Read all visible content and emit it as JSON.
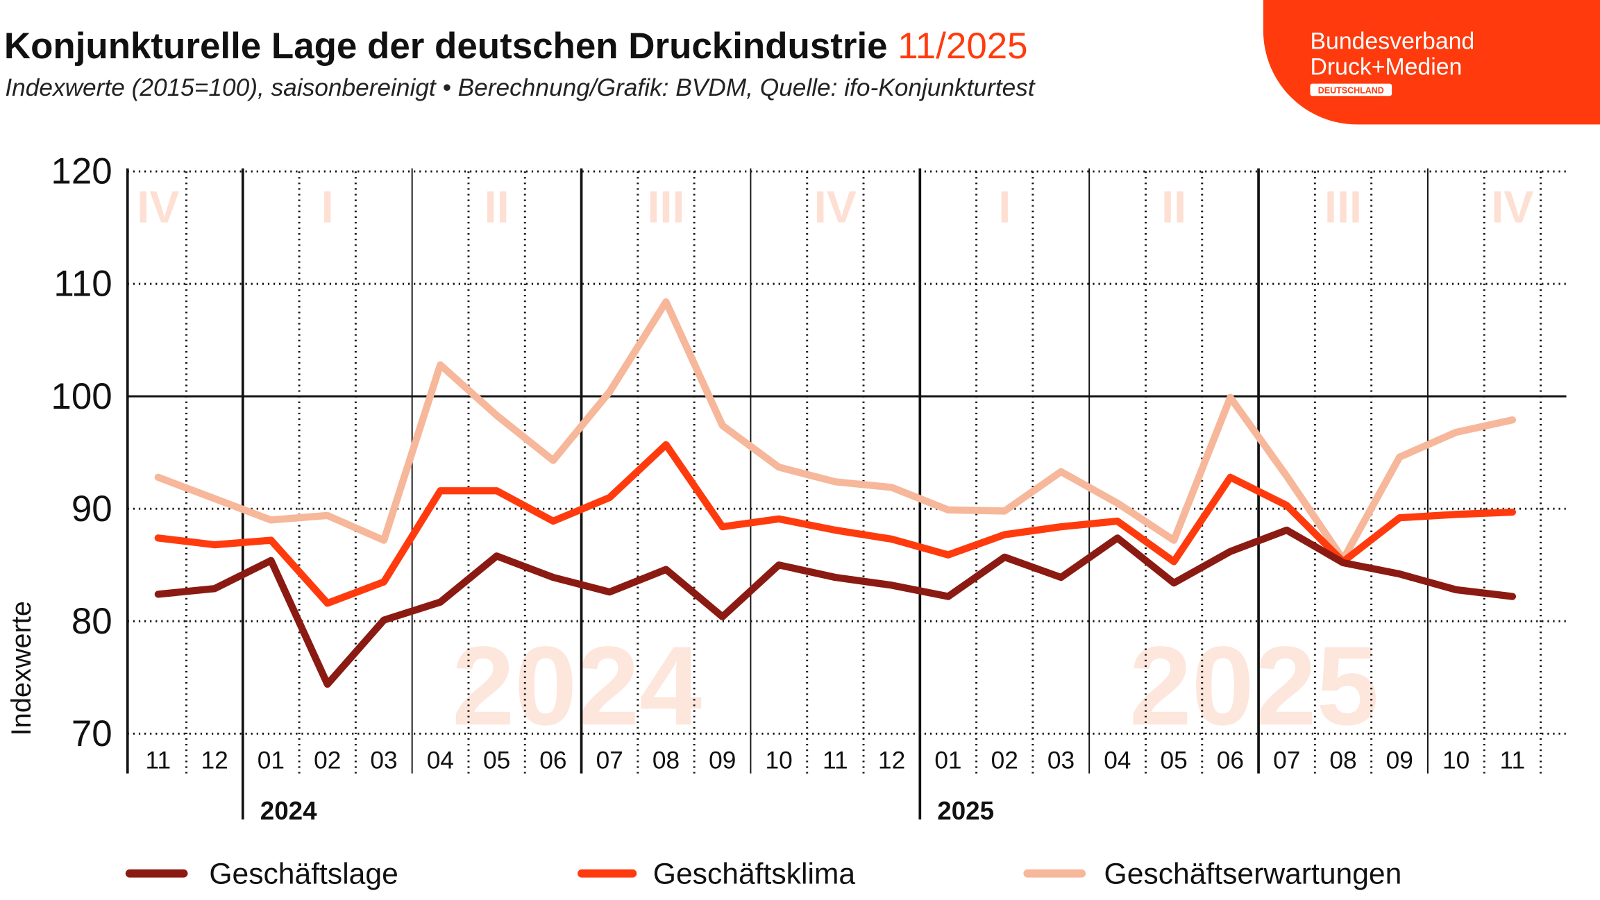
{
  "header": {
    "title": "Konjunkturelle Lage der deutschen Druckindustrie",
    "title_period": "11/2025",
    "subtitle": "Indexwerte (2015=100), saisonbereinigt • Berechnung/Grafik: BVDM, Quelle: ifo-Konjunkturtest"
  },
  "logo": {
    "line1": "Bundesverband",
    "line2": "Druck+Medien",
    "badge": "DEUTSCHLAND",
    "color": "#ff3b0e"
  },
  "chart_data": {
    "type": "line",
    "title": "Konjunkturelle Lage der deutschen Druckindustrie 11/2025",
    "ylabel": "Indexwerte",
    "xlabel": "",
    "ylim": [
      70,
      120
    ],
    "yticks": [
      "70",
      "80",
      "90",
      "100",
      "110",
      "120"
    ],
    "grid": true,
    "reference_line": 100,
    "legend_position": "bottom",
    "categories": [
      "11",
      "12",
      "01",
      "02",
      "03",
      "04",
      "05",
      "06",
      "07",
      "08",
      "09",
      "10",
      "11",
      "12",
      "01",
      "02",
      "03",
      "04",
      "05",
      "06",
      "07",
      "08",
      "09",
      "10",
      "11"
    ],
    "years": [
      {
        "label": "2024",
        "start_index": 2
      },
      {
        "label": "2025",
        "start_index": 14
      }
    ],
    "quarters": [
      {
        "label": "IV",
        "center_index": 0
      },
      {
        "label": "I",
        "center_index": 3
      },
      {
        "label": "II",
        "center_index": 6
      },
      {
        "label": "III",
        "center_index": 9
      },
      {
        "label": "IV",
        "center_index": 12
      },
      {
        "label": "I",
        "center_index": 15
      },
      {
        "label": "II",
        "center_index": 18
      },
      {
        "label": "III",
        "center_index": 21
      },
      {
        "label": "IV",
        "center_index": 24
      }
    ],
    "watermarks": [
      {
        "label": "2024",
        "center_index": 8
      },
      {
        "label": "2025",
        "center_index": 20
      }
    ],
    "series": [
      {
        "name": "Geschäftslage",
        "color": "#8b1a12",
        "values": [
          82.4,
          82.9,
          85.4,
          74.4,
          80.1,
          81.7,
          85.8,
          83.9,
          82.6,
          84.6,
          80.4,
          85.0,
          83.9,
          83.2,
          82.2,
          85.7,
          83.9,
          87.4,
          83.4,
          86.2,
          88.1,
          85.2,
          84.2,
          82.8,
          82.2
        ]
      },
      {
        "name": "Geschäftsklima",
        "color": "#ff3b0e",
        "values": [
          87.4,
          86.8,
          87.2,
          81.6,
          83.5,
          91.6,
          91.6,
          88.9,
          91.0,
          95.7,
          88.4,
          89.1,
          88.1,
          87.3,
          85.9,
          87.7,
          88.4,
          88.9,
          85.3,
          92.8,
          90.3,
          85.3,
          89.2,
          89.5,
          89.7
        ]
      },
      {
        "name": "Geschäftserwartungen",
        "color": "#f6b79a",
        "values": [
          92.8,
          90.9,
          89.0,
          89.4,
          87.2,
          102.8,
          98.3,
          94.3,
          100.4,
          108.4,
          97.4,
          93.7,
          92.4,
          91.9,
          89.9,
          89.8,
          93.3,
          90.5,
          87.2,
          99.9,
          92.9,
          85.5,
          94.6,
          96.8,
          97.9
        ]
      }
    ]
  }
}
